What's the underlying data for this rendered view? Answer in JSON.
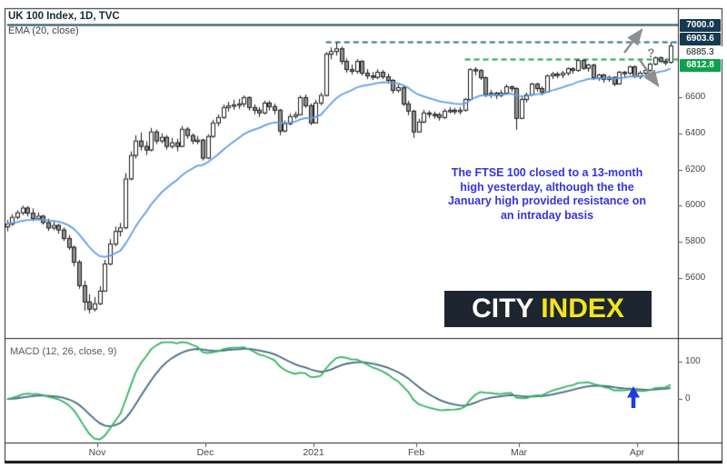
{
  "header": {
    "title": "UK 100 Index, 1D, TVC",
    "indicator_label": "EMA (20, close)"
  },
  "macd_panel": {
    "label": "MACD (12, 26, close, 9)"
  },
  "annotation": {
    "lines": [
      "The FTSE 100 closed to a 13-month",
      "high yesterday, although the the",
      "January high provided resistance on",
      "an intraday basis"
    ],
    "color": "#3434e0"
  },
  "logo": {
    "text_white": "CITY ",
    "text_yellow": "INDEX",
    "bg_color": "#1c2530",
    "yellow_color": "#f3e51d"
  },
  "question_mark": "?",
  "price_scale": {
    "badges": [
      {
        "text": "7000.0",
        "style": "navy"
      },
      {
        "text": "6903.6",
        "style": "navy"
      },
      {
        "text": "6885.3",
        "style": "plain"
      },
      {
        "text": "6812.8",
        "style": "green"
      }
    ]
  },
  "colors": {
    "candle_up_fill": "#ffffff",
    "candle_down_fill": "#919191",
    "candle_border": "#1a1a1a",
    "ema_line": "#5f9fe8",
    "macd_line": "#35b560",
    "signal_line": "#466a84",
    "level_7000": "#1b4a5e",
    "jan_high_dash": "#33718e",
    "mar_high_dash": "#14a94e",
    "gray_arrow": "#8f8f8f",
    "blue_arrow": "#1f3be0",
    "badge_navy": "#16394e",
    "badge_green": "#0da24c"
  },
  "chart_data": {
    "type": "candlestick",
    "title": "UK 100 Index, 1D, TVC",
    "overlays": [
      {
        "type": "ema",
        "period": 20,
        "source": "close",
        "color": "#5f9fe8"
      }
    ],
    "lower_panel": {
      "type": "macd",
      "fast": 12,
      "slow": 26,
      "source": "close",
      "signal": 9,
      "axis_ticks": [
        "100",
        "0"
      ],
      "axis_tick_values": [
        100,
        0
      ],
      "range": [
        -118,
        165
      ]
    },
    "price_axis": {
      "ticks": [
        "6600",
        "6400",
        "6200",
        "6000",
        "5800",
        "5600"
      ],
      "tick_values": [
        6600,
        6400,
        6200,
        6000,
        5800,
        5600
      ],
      "min": 5268,
      "max": 7092
    },
    "time_axis": {
      "labels": [
        {
          "label": "Nov",
          "index": 17.5
        },
        {
          "label": "Dec",
          "index": 38.5
        },
        {
          "label": "2021",
          "index": 59.5
        },
        {
          "label": "Feb",
          "index": 79.5
        },
        {
          "label": "Mar",
          "index": 99.5
        },
        {
          "label": "Apr",
          "index": 122.5
        }
      ]
    },
    "levels": [
      {
        "price": 7000.0,
        "label": "7000.0",
        "style": "solid",
        "color": "#1b4a5e",
        "from_index": 0
      },
      {
        "price": 6903.6,
        "label": "6903.6",
        "style": "dashed",
        "color": "#33718e",
        "from_index": 62
      },
      {
        "price": 6812.8,
        "label": "6812.8",
        "style": "dashed",
        "color": "#14a94e",
        "from_index": 89
      }
    ],
    "last_price": 6885.3,
    "candles": [
      [
        5885,
        5920,
        5858,
        5900
      ],
      [
        5900,
        5952,
        5888,
        5938
      ],
      [
        5938,
        5975,
        5925,
        5963
      ],
      [
        5963,
        6000,
        5948,
        5989
      ],
      [
        5989,
        5998,
        5940,
        5961
      ],
      [
        5961,
        5985,
        5915,
        5931
      ],
      [
        5931,
        5962,
        5918,
        5944
      ],
      [
        5944,
        5950,
        5895,
        5909
      ],
      [
        5909,
        5928,
        5860,
        5879
      ],
      [
        5879,
        5910,
        5865,
        5893
      ],
      [
        5893,
        5900,
        5845,
        5868
      ],
      [
        5868,
        5880,
        5805,
        5821
      ],
      [
        5821,
        5838,
        5755,
        5772
      ],
      [
        5772,
        5780,
        5665,
        5690
      ],
      [
        5690,
        5700,
        5540,
        5560
      ],
      [
        5560,
        5585,
        5420,
        5470
      ],
      [
        5470,
        5510,
        5405,
        5430
      ],
      [
        5430,
        5495,
        5415,
        5460
      ],
      [
        5460,
        5555,
        5450,
        5530
      ],
      [
        5530,
        5700,
        5525,
        5680
      ],
      [
        5680,
        5815,
        5670,
        5790
      ],
      [
        5790,
        5885,
        5775,
        5860
      ],
      [
        5860,
        5905,
        5830,
        5880
      ],
      [
        5880,
        6180,
        5870,
        6150
      ],
      [
        6150,
        6300,
        6140,
        6280
      ],
      [
        6280,
        6390,
        6260,
        6360
      ],
      [
        6360,
        6405,
        6305,
        6330
      ],
      [
        6330,
        6355,
        6280,
        6310
      ],
      [
        6310,
        6430,
        6300,
        6410
      ],
      [
        6410,
        6420,
        6340,
        6360
      ],
      [
        6360,
        6400,
        6345,
        6380
      ],
      [
        6380,
        6390,
        6310,
        6330
      ],
      [
        6330,
        6375,
        6315,
        6350
      ],
      [
        6350,
        6370,
        6300,
        6330
      ],
      [
        6330,
        6440,
        6325,
        6425
      ],
      [
        6425,
        6435,
        6370,
        6390
      ],
      [
        6390,
        6400,
        6340,
        6360
      ],
      [
        6360,
        6385,
        6340,
        6365
      ],
      [
        6365,
        6370,
        6250,
        6265
      ],
      [
        6265,
        6395,
        6260,
        6385
      ],
      [
        6385,
        6475,
        6375,
        6460
      ],
      [
        6460,
        6505,
        6440,
        6490
      ],
      [
        6490,
        6560,
        6480,
        6545
      ],
      [
        6545,
        6575,
        6520,
        6555
      ],
      [
        6555,
        6585,
        6530,
        6560
      ],
      [
        6560,
        6590,
        6535,
        6565
      ],
      [
        6565,
        6610,
        6545,
        6600
      ],
      [
        6600,
        6605,
        6525,
        6545
      ],
      [
        6545,
        6560,
        6505,
        6530
      ],
      [
        6530,
        6545,
        6490,
        6515
      ],
      [
        6515,
        6580,
        6505,
        6570
      ],
      [
        6570,
        6580,
        6525,
        6550
      ],
      [
        6550,
        6565,
        6505,
        6530
      ],
      [
        6530,
        6535,
        6390,
        6415
      ],
      [
        6415,
        6470,
        6405,
        6455
      ],
      [
        6455,
        6510,
        6445,
        6495
      ],
      [
        6495,
        6520,
        6480,
        6505
      ],
      [
        6505,
        6610,
        6500,
        6600
      ],
      [
        6600,
        6615,
        6540,
        6555
      ],
      [
        6555,
        6565,
        6445,
        6460
      ],
      [
        6460,
        6585,
        6455,
        6570
      ],
      [
        6570,
        6625,
        6555,
        6612
      ],
      [
        6612,
        6850,
        6605,
        6840
      ],
      [
        6840,
        6875,
        6810,
        6855
      ],
      [
        6855,
        6903.6,
        6830,
        6870
      ],
      [
        6870,
        6880,
        6780,
        6800
      ],
      [
        6800,
        6815,
        6735,
        6755
      ],
      [
        6755,
        6780,
        6725,
        6745
      ],
      [
        6745,
        6810,
        6730,
        6800
      ],
      [
        6800,
        6805,
        6720,
        6735
      ],
      [
        6735,
        6755,
        6700,
        6720
      ],
      [
        6720,
        6740,
        6695,
        6712
      ],
      [
        6712,
        6755,
        6700,
        6740
      ],
      [
        6740,
        6750,
        6700,
        6715
      ],
      [
        6715,
        6730,
        6675,
        6695
      ],
      [
        6695,
        6700,
        6620,
        6640
      ],
      [
        6640,
        6670,
        6625,
        6655
      ],
      [
        6655,
        6660,
        6550,
        6565
      ],
      [
        6565,
        6580,
        6500,
        6525
      ],
      [
        6525,
        6530,
        6375,
        6410
      ],
      [
        6410,
        6480,
        6405,
        6465
      ],
      [
        6465,
        6530,
        6455,
        6515
      ],
      [
        6515,
        6525,
        6485,
        6508
      ],
      [
        6508,
        6520,
        6480,
        6505
      ],
      [
        6505,
        6515,
        6470,
        6490
      ],
      [
        6490,
        6535,
        6480,
        6525
      ],
      [
        6525,
        6545,
        6510,
        6530
      ],
      [
        6530,
        6540,
        6505,
        6525
      ],
      [
        6525,
        6545,
        6505,
        6530
      ],
      [
        6530,
        6595,
        6520,
        6590
      ],
      [
        6590,
        6760,
        6585,
        6755
      ],
      [
        6755,
        6765,
        6720,
        6750
      ],
      [
        6750,
        6755,
        6695,
        6710
      ],
      [
        6710,
        6715,
        6600,
        6618
      ],
      [
        6618,
        6640,
        6595,
        6625
      ],
      [
        6625,
        6630,
        6590,
        6612
      ],
      [
        6612,
        6640,
        6600,
        6625
      ],
      [
        6625,
        6670,
        6615,
        6660
      ],
      [
        6660,
        6665,
        6630,
        6650
      ],
      [
        6650,
        6655,
        6420,
        6485
      ],
      [
        6485,
        6600,
        6480,
        6590
      ],
      [
        6590,
        6625,
        6570,
        6615
      ],
      [
        6615,
        6680,
        6605,
        6675
      ],
      [
        6675,
        6680,
        6630,
        6650
      ],
      [
        6650,
        6660,
        6610,
        6630
      ],
      [
        6630,
        6725,
        6625,
        6720
      ],
      [
        6720,
        6740,
        6700,
        6730
      ],
      [
        6730,
        6740,
        6705,
        6725
      ],
      [
        6725,
        6745,
        6705,
        6735
      ],
      [
        6735,
        6765,
        6720,
        6760
      ],
      [
        6760,
        6765,
        6730,
        6750
      ],
      [
        6750,
        6812,
        6740,
        6805
      ],
      [
        6805,
        6810,
        6750,
        6762
      ],
      [
        6762,
        6785,
        6740,
        6780
      ],
      [
        6780,
        6785,
        6695,
        6710
      ],
      [
        6710,
        6730,
        6690,
        6725
      ],
      [
        6725,
        6730,
        6680,
        6700
      ],
      [
        6700,
        6720,
        6685,
        6712
      ],
      [
        6712,
        6715,
        6660,
        6675
      ],
      [
        6675,
        6745,
        6670,
        6740
      ],
      [
        6740,
        6745,
        6710,
        6735
      ],
      [
        6735,
        6775,
        6725,
        6770
      ],
      [
        6770,
        6775,
        6705,
        6715
      ],
      [
        6715,
        6745,
        6700,
        6735
      ],
      [
        6735,
        6760,
        6720,
        6750
      ],
      [
        6750,
        6790,
        6740,
        6785
      ],
      [
        6785,
        6825,
        6775,
        6820
      ],
      [
        6820,
        6825,
        6790,
        6800
      ],
      [
        6800,
        6810,
        6775,
        6795
      ],
      [
        6795,
        6903.6,
        6785,
        6885.3
      ]
    ]
  }
}
